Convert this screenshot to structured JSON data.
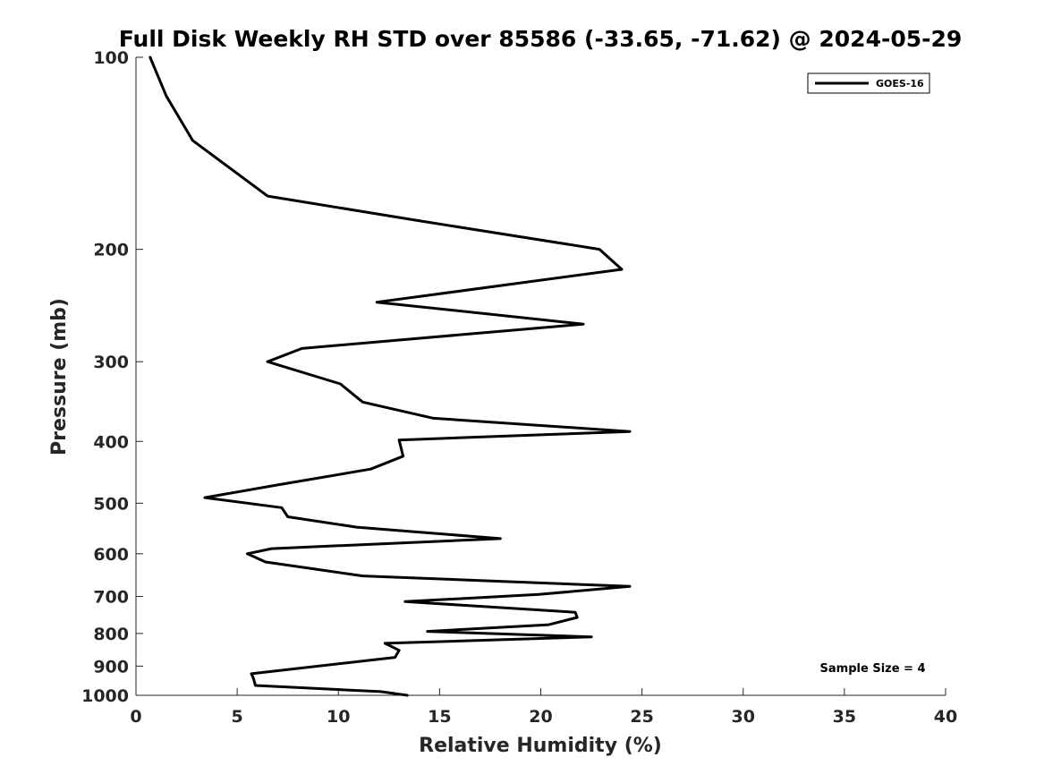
{
  "chart_data": {
    "type": "line",
    "title": "Full Disk Weekly RH STD over 85586 (-33.65, -71.62) @ 2024-05-29",
    "xlabel": "Relative Humidity (%)",
    "ylabel": "Pressure (mb)",
    "xlim": [
      0,
      40
    ],
    "ylim": [
      100,
      1000
    ],
    "y_scale": "log",
    "y_reversed": true,
    "x_ticks": [
      0,
      5,
      10,
      15,
      20,
      25,
      30,
      35,
      40
    ],
    "y_ticks": [
      100,
      200,
      300,
      400,
      500,
      600,
      700,
      800,
      900,
      1000
    ],
    "grid": false,
    "legend_position": "top-right",
    "series": [
      {
        "name": "GOES-16",
        "color": "#000000",
        "x": [
          0.7,
          1.5,
          2.8,
          6.5,
          13.8,
          22.9,
          24.0,
          11.9,
          22.1,
          8.2,
          6.5,
          10.1,
          11.2,
          14.7,
          24.4,
          13.0,
          13.2,
          11.6,
          7.0,
          3.4,
          7.2,
          7.5,
          10.9,
          18.0,
          6.7,
          5.5,
          6.4,
          11.2,
          24.4,
          19.9,
          13.3,
          21.7,
          21.8,
          20.4,
          14.4,
          22.5,
          12.3,
          13.0,
          12.8,
          5.7,
          5.8,
          5.9,
          12.1,
          13.4
        ],
        "y": [
          100,
          115,
          135,
          165,
          180,
          200,
          215,
          242,
          262,
          286,
          300,
          325,
          347,
          368,
          386,
          398,
          422,
          442,
          468,
          490,
          508,
          525,
          545,
          568,
          589,
          600,
          618,
          650,
          675,
          695,
          713,
          741,
          755,
          775,
          794,
          810,
          829,
          850,
          872,
          925,
          940,
          965,
          987,
          1000
        ]
      }
    ],
    "annotations": [
      {
        "text": "Sample Size = 4",
        "x": 36.4,
        "y": 905
      }
    ]
  }
}
